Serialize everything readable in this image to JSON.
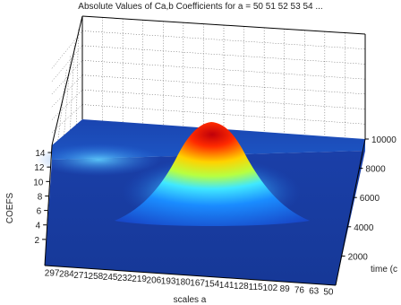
{
  "chart_data": {
    "type": "surface",
    "title": "Absolute Values of Ca,b Coefficients for a =  50 51 52 53 54 ...",
    "xlabel": "scales a",
    "ylabel": "time (c",
    "zlabel": "COEFS",
    "x_ticks": [
      "297",
      "284",
      "271",
      "258",
      "245",
      "232",
      "219",
      "206",
      "193",
      "180",
      "167",
      "154",
      "141",
      "128",
      "115",
      "102",
      "89",
      "76",
      "63",
      "50"
    ],
    "y_ticks": [
      "2000",
      "4000",
      "6000",
      "8000",
      "10000"
    ],
    "z_ticks": [
      "2",
      "4",
      "6",
      "8",
      "10",
      "12",
      "14"
    ],
    "xlim": [
      297,
      50
    ],
    "ylim": [
      0,
      10000
    ],
    "zlim": [
      0,
      15
    ],
    "grid": true,
    "colormap": "jet",
    "peak": {
      "scale_a": 155,
      "time": 5000,
      "value": 14
    }
  }
}
